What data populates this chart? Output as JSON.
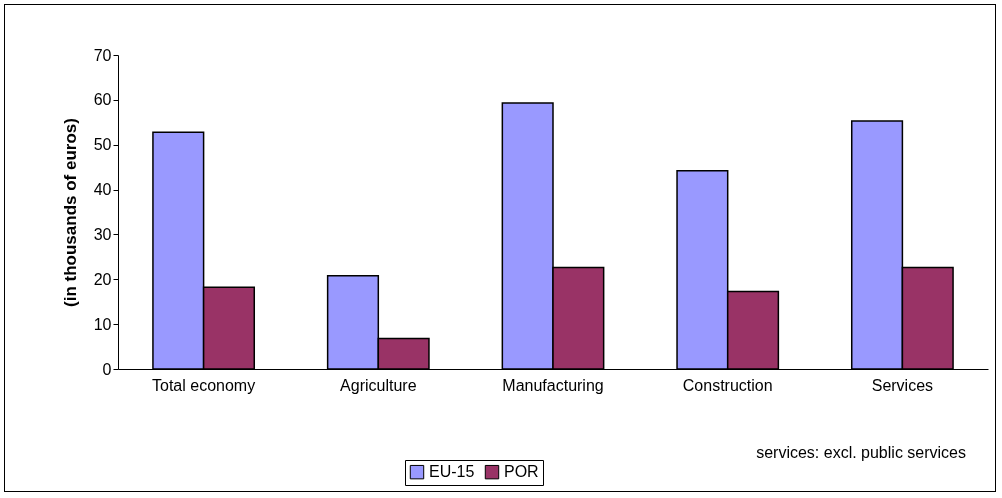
{
  "chart_data": {
    "type": "bar",
    "ylabel": "(in thousands of euros)",
    "categories": [
      "Total economy",
      "Agriculture",
      "Manufacturing",
      "Construction",
      "Services"
    ],
    "series": [
      {
        "name": "EU-15",
        "color": "#9999ff",
        "values": [
          52.8,
          20.8,
          59.3,
          44.2,
          55.3
        ]
      },
      {
        "name": "POR",
        "color": "#993366",
        "values": [
          18.2,
          6.8,
          22.6,
          17.3,
          22.6
        ]
      }
    ],
    "ylim": [
      0,
      70
    ],
    "yticks": [
      0,
      10,
      20,
      30,
      40,
      50,
      60,
      70
    ],
    "grid": false,
    "legend": "bottom",
    "annotations": [
      "services: excl. public services"
    ]
  }
}
